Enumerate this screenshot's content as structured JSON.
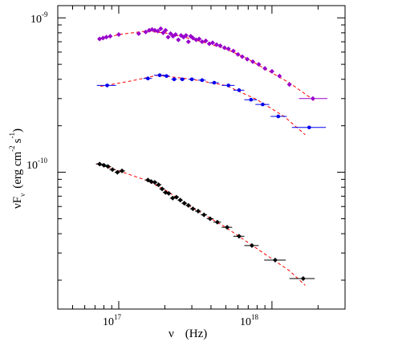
{
  "chart_data": {
    "type": "scatter",
    "title": "",
    "x_axis": {
      "symbol": "ν",
      "unit": "(Hz)",
      "scale": "log",
      "range": [
        4e+16,
        3e+18
      ],
      "ticks": [
        {
          "value": 1e+17,
          "base": "10",
          "exp": "17"
        },
        {
          "value": 1e+18,
          "base": "10",
          "exp": "18"
        }
      ]
    },
    "y_axis": {
      "symbol": "νF",
      "subscript": "ν",
      "unit_open": "(erg cm",
      "unit_exp1": "-2",
      "unit_mid": "s",
      "unit_exp2": "-1",
      "unit_close": ")",
      "scale": "log",
      "range": [
        1.3e-11,
        1.2e-09
      ],
      "ticks": [
        {
          "value": 1e-10,
          "base": "10",
          "exp": "-10"
        },
        {
          "value": 1e-09,
          "base": "10",
          "exp": "-9"
        }
      ]
    },
    "model_line_style": "dashed",
    "series": [
      {
        "color": "#9900cc",
        "marker": "diamond",
        "points": [
          {
            "x": 7.5e+16,
            "y": 7.3e-10
          },
          {
            "x": 7.9e+16,
            "y": 7.4e-10
          },
          {
            "x": 8.3e+16,
            "y": 7.5e-10
          },
          {
            "x": 8.8e+16,
            "y": 7.6e-10
          },
          {
            "x": 1e+17,
            "y": 7.8e-10
          },
          {
            "x": 1.35e+17,
            "y": 7.9e-10
          },
          {
            "x": 1.5e+17,
            "y": 8.1e-10
          },
          {
            "x": 1.58e+17,
            "y": 8.3e-10
          },
          {
            "x": 1.65e+17,
            "y": 8.4e-10
          },
          {
            "x": 1.72e+17,
            "y": 8.3e-10
          },
          {
            "x": 1.8e+17,
            "y": 8.2e-10
          },
          {
            "x": 1.88e+17,
            "y": 8.5e-10
          },
          {
            "x": 1.95e+17,
            "y": 8e-10
          },
          {
            "x": 2.02e+17,
            "y": 8.3e-10
          },
          {
            "x": 2.1e+17,
            "y": 7.5e-10
          },
          {
            "x": 2.18e+17,
            "y": 7.9e-10
          },
          {
            "x": 2.26e+17,
            "y": 7.6e-10
          },
          {
            "x": 2.35e+17,
            "y": 7.8e-10
          },
          {
            "x": 2.45e+17,
            "y": 7.2e-10
          },
          {
            "x": 2.55e+17,
            "y": 7.7e-10
          },
          {
            "x": 2.65e+17,
            "y": 7.5e-10
          },
          {
            "x": 2.75e+17,
            "y": 7.7e-10
          },
          {
            "x": 2.85e+17,
            "y": 7e-10
          },
          {
            "x": 2.95e+17,
            "y": 7.6e-10
          },
          {
            "x": 3.05e+17,
            "y": 7.4e-10
          },
          {
            "x": 3.2e+17,
            "y": 7.2e-10
          },
          {
            "x": 3.35e+17,
            "y": 7.3e-10
          },
          {
            "x": 3.5e+17,
            "y": 7e-10
          },
          {
            "x": 3.7e+17,
            "y": 7.1e-10
          },
          {
            "x": 3.9e+17,
            "y": 6.8e-10
          },
          {
            "x": 4.1e+17,
            "y": 6.9e-10
          },
          {
            "x": 4.35e+17,
            "y": 6.7e-10
          },
          {
            "x": 4.6e+17,
            "y": 6.6e-10
          },
          {
            "x": 4.9e+17,
            "y": 6.4e-10
          },
          {
            "x": 5.2e+17,
            "y": 6.3e-10
          },
          {
            "x": 5.6e+17,
            "y": 6.1e-10
          },
          {
            "x": 6e+17,
            "y": 5.8e-10
          },
          {
            "x": 6.4e+17,
            "y": 5.6e-10
          },
          {
            "x": 6.9e+17,
            "y": 5.4e-10
          },
          {
            "x": 7.5e+17,
            "y": 5.2e-10
          },
          {
            "x": 8.2e+17,
            "y": 5e-10
          },
          {
            "x": 9e+17,
            "y": 4.7e-10
          },
          {
            "x": 1e+18,
            "y": 4.5e-10
          },
          {
            "x": 1.12e+18,
            "y": 4.2e-10
          },
          {
            "x": 1.3e+18,
            "y": 3.7e-10
          },
          {
            "x": 1.85e+18,
            "y": 3e-10,
            "xerr": [
              1.5e+18,
              2.3e+18
            ]
          }
        ],
        "model": [
          [
            7.3e+16,
            7.2e-10
          ],
          [
            1e+17,
            7.8e-10
          ],
          [
            1.5e+17,
            8.2e-10
          ],
          [
            2e+17,
            8e-10
          ],
          [
            3e+17,
            7.3e-10
          ],
          [
            5e+17,
            6.3e-10
          ],
          [
            7e+17,
            5.4e-10
          ],
          [
            1e+18,
            4.4e-10
          ],
          [
            1.3e+18,
            3.8e-10
          ],
          [
            1.9e+18,
            2.9e-10
          ]
        ]
      },
      {
        "color": "#0000ee",
        "marker": "circle",
        "points": [
          {
            "x": 8.4e+16,
            "y": 3.65e-10,
            "xerr": [
              7.2e+16,
              9.6e+16
            ]
          },
          {
            "x": 1.55e+17,
            "y": 4.05e-10,
            "xerr": [
              1.45e+17,
              1.65e+17
            ]
          },
          {
            "x": 1.85e+17,
            "y": 4.25e-10,
            "xerr": [
              1.7e+17,
              2e+17
            ]
          },
          {
            "x": 2.05e+17,
            "y": 4.2e-10,
            "xerr": [
              1.95e+17,
              2.15e+17
            ]
          },
          {
            "x": 2.3e+17,
            "y": 4e-10,
            "xerr": [
              2.2e+17,
              2.4e+17
            ]
          },
          {
            "x": 2.6e+17,
            "y": 4e-10,
            "xerr": [
              2.5e+17,
              2.7e+17
            ]
          },
          {
            "x": 3e+17,
            "y": 4e-10,
            "xerr": [
              2.85e+17,
              3.15e+17
            ]
          },
          {
            "x": 3.5e+17,
            "y": 3.95e-10,
            "xerr": [
              3.3e+17,
              3.7e+17
            ]
          },
          {
            "x": 4.2e+17,
            "y": 3.8e-10,
            "xerr": [
              3.9e+17,
              4.5e+17
            ]
          },
          {
            "x": 5.2e+17,
            "y": 3.65e-10,
            "xerr": [
              4.7e+17,
              5.7e+17
            ]
          },
          {
            "x": 6.1e+17,
            "y": 3.4e-10,
            "xerr": [
              5.6e+17,
              6.6e+17
            ]
          },
          {
            "x": 7.3e+17,
            "y": 2.95e-10,
            "xerr": [
              6.6e+17,
              8e+17
            ]
          },
          {
            "x": 8.7e+17,
            "y": 2.75e-10,
            "xerr": [
              7.8e+17,
              9.6e+17
            ]
          },
          {
            "x": 1.1e+18,
            "y": 2.3e-10,
            "xerr": [
              9.8e+17,
              1.25e+18
            ]
          },
          {
            "x": 1.75e+18,
            "y": 1.95e-10,
            "xerr": [
              1.35e+18,
              2.25e+18
            ]
          }
        ],
        "model": [
          [
            7.6e+16,
            3.6e-10
          ],
          [
            1.2e+17,
            3.9e-10
          ],
          [
            1.8e+17,
            4.25e-10
          ],
          [
            3e+17,
            4e-10
          ],
          [
            5e+17,
            3.65e-10
          ],
          [
            8e+17,
            2.95e-10
          ],
          [
            1.2e+18,
            2.3e-10
          ],
          [
            1.65e+18,
            1.75e-10
          ]
        ]
      },
      {
        "color": "#000000",
        "marker": "diamond",
        "points": [
          {
            "x": 7.5e+16,
            "y": 1.13e-10,
            "xerr": [
              7.1e+16,
              7.9e+16
            ]
          },
          {
            "x": 8e+16,
            "y": 1.11e-10,
            "xerr": [
              7.6e+16,
              8.4e+16
            ]
          },
          {
            "x": 8.5e+16,
            "y": 1.09e-10,
            "xerr": [
              8.1e+16,
              8.9e+16
            ]
          },
          {
            "x": 9.1e+16,
            "y": 1.04e-10,
            "xerr": [
              8.7e+16,
              9.5e+16
            ]
          },
          {
            "x": 9.8e+16,
            "y": 1e-10,
            "xerr": [
              9.4e+16,
              1.02e+17
            ]
          },
          {
            "x": 1.05e+17,
            "y": 1.02e-10,
            "xerr": [
              1e+17,
              1.1e+17
            ]
          },
          {
            "x": 1.55e+17,
            "y": 8.9e-11,
            "xerr": [
              1.48e+17,
              1.62e+17
            ]
          },
          {
            "x": 1.63e+17,
            "y": 8.7e-11,
            "xerr": [
              1.56e+17,
              1.7e+17
            ]
          },
          {
            "x": 1.72e+17,
            "y": 8.6e-11,
            "xerr": [
              1.65e+17,
              1.79e+17
            ]
          },
          {
            "x": 1.82e+17,
            "y": 8.3e-11,
            "xerr": [
              1.74e+17,
              1.9e+17
            ]
          },
          {
            "x": 1.92e+17,
            "y": 7.8e-11,
            "xerr": [
              1.84e+17,
              2e+17
            ]
          },
          {
            "x": 2.02e+17,
            "y": 7.4e-11,
            "xerr": [
              1.94e+17,
              2.1e+17
            ]
          },
          {
            "x": 2.12e+17,
            "y": 7.3e-11,
            "xerr": [
              2.04e+17,
              2.2e+17
            ]
          },
          {
            "x": 2.25e+17,
            "y": 6.8e-11,
            "xerr": [
              2.16e+17,
              2.34e+17
            ]
          },
          {
            "x": 2.38e+17,
            "y": 6.9e-11,
            "xerr": [
              2.29e+17,
              2.47e+17
            ]
          },
          {
            "x": 2.52e+17,
            "y": 6.6e-11,
            "xerr": [
              2.42e+17,
              2.62e+17
            ]
          },
          {
            "x": 2.68e+17,
            "y": 6.3e-11,
            "xerr": [
              2.57e+17,
              2.79e+17
            ]
          },
          {
            "x": 2.85e+17,
            "y": 6.1e-11,
            "xerr": [
              2.73e+17,
              2.97e+17
            ]
          },
          {
            "x": 3.05e+17,
            "y": 5.8e-11,
            "xerr": [
              2.92e+17,
              3.18e+17
            ]
          },
          {
            "x": 3.3e+17,
            "y": 5.6e-11,
            "xerr": [
              3.15e+17,
              3.45e+17
            ]
          },
          {
            "x": 3.6e+17,
            "y": 5.3e-11,
            "xerr": [
              3.43e+17,
              3.77e+17
            ]
          },
          {
            "x": 3.95e+17,
            "y": 5e-11,
            "xerr": [
              3.75e+17,
              4.15e+17
            ]
          },
          {
            "x": 4.4e+17,
            "y": 4.75e-11,
            "xerr": [
              4.15e+17,
              4.65e+17
            ]
          },
          {
            "x": 5.1e+17,
            "y": 4.4e-11,
            "xerr": [
              4.7e+17,
              5.5e+17
            ]
          },
          {
            "x": 6.1e+17,
            "y": 3.85e-11,
            "xerr": [
              5.6e+17,
              6.6e+17
            ]
          },
          {
            "x": 7.4e+17,
            "y": 3.35e-11,
            "xerr": [
              6.6e+17,
              8.2e+17
            ]
          },
          {
            "x": 1.05e+18,
            "y": 2.7e-11,
            "xerr": [
              8.9e+17,
              1.23e+18
            ]
          },
          {
            "x": 1.6e+18,
            "y": 2.05e-11,
            "xerr": [
              1.3e+18,
              1.9e+18
            ]
          }
        ],
        "model": [
          [
            7.2e+16,
            1.14e-10
          ],
          [
            1e+17,
            1.02e-10
          ],
          [
            1.5e+17,
            8.9e-11
          ],
          [
            2e+17,
            7.7e-11
          ],
          [
            3e+17,
            5.9e-11
          ],
          [
            5e+17,
            4.4e-11
          ],
          [
            7e+17,
            3.5e-11
          ],
          [
            1e+18,
            2.75e-11
          ],
          [
            1.3e+18,
            2.3e-11
          ],
          [
            1.65e+18,
            1.85e-11
          ]
        ]
      }
    ]
  }
}
